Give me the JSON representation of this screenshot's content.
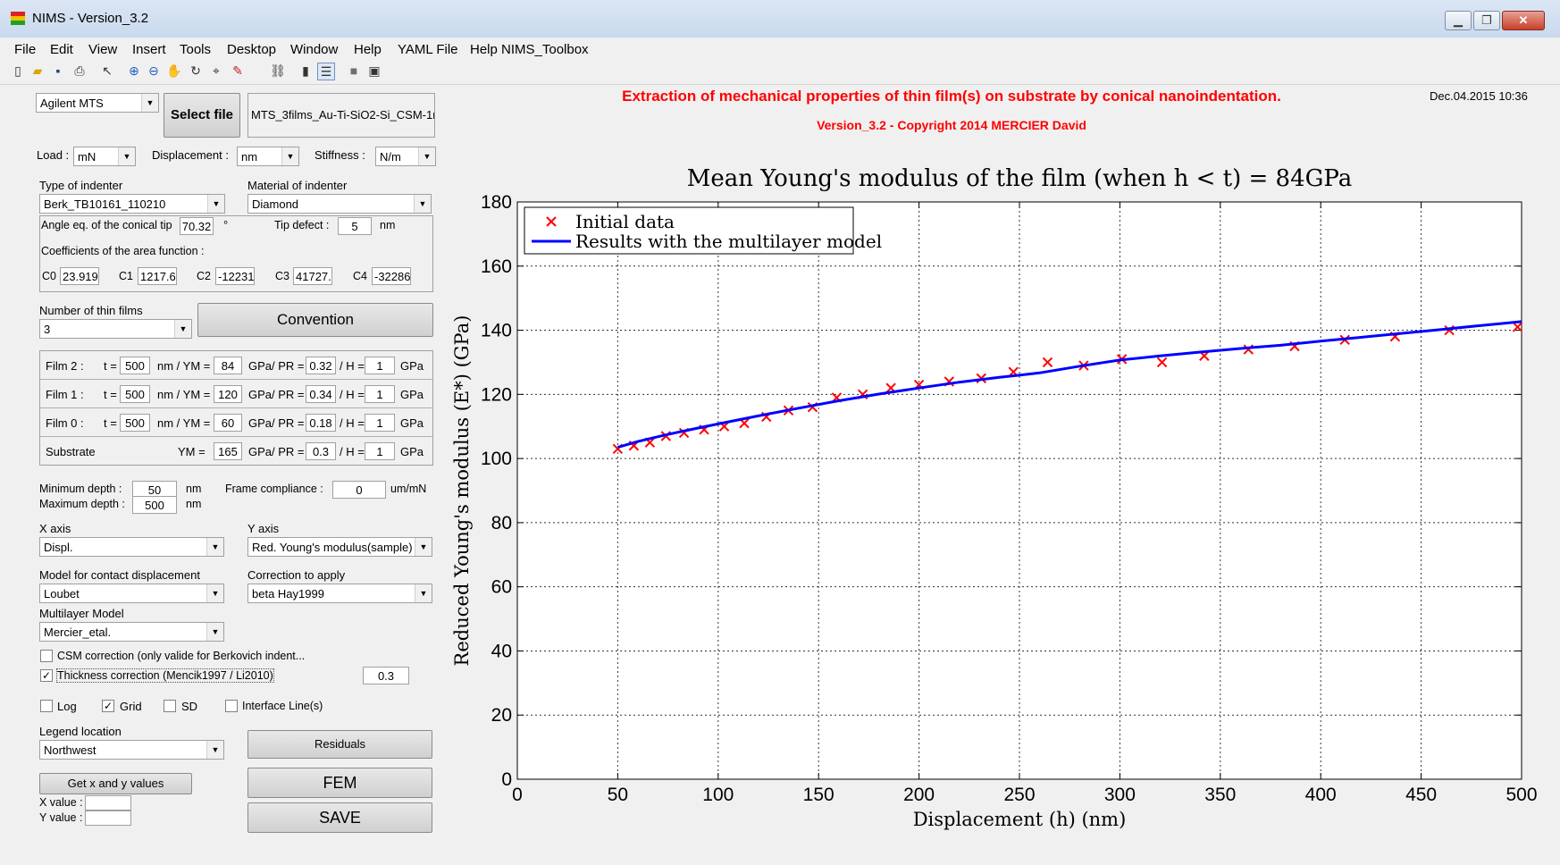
{
  "window": {
    "title": "NIMS - Version_3.2",
    "min": "▁",
    "max": "❐",
    "close": "✕"
  },
  "menu": [
    "File",
    "Edit",
    "View",
    "Insert",
    "Tools",
    "Desktop",
    "Window",
    "Help",
    "YAML File",
    "Help NIMS_Toolbox"
  ],
  "toolbar_icons": [
    "new-icon",
    "open-icon",
    "save-icon",
    "print-icon",
    "pointer-icon",
    "zoom-in-icon",
    "zoom-out-icon",
    "pan-icon",
    "rotate-icon",
    "datacursor-icon",
    "brush-icon",
    "link-icon",
    "colorbar-icon",
    "legend-icon",
    "hide-icon",
    "show-icon"
  ],
  "header": {
    "title": "Extraction of mechanical properties of thin film(s) on substrate by conical nanoindentation.",
    "subtitle": "Version_3.2 - Copyright 2014 MERCIER David",
    "date": "Dec.04.2015 10:36",
    "title_color": "#ff0000"
  },
  "left": {
    "instrument": "Agilent MTS",
    "select_file": "Select file",
    "filename": "MTS_3films_Au-Ti-SiO2-Si_CSM-1n",
    "load_label": "Load :",
    "load_unit": "mN",
    "disp_label": "Displacement :",
    "disp_unit": "nm",
    "stiff_label": "Stiffness :",
    "stiff_unit": "N/m",
    "indenter_type_label": "Type of indenter",
    "indenter_type": "Berk_TB10161_110210",
    "indenter_mat_label": "Material of indenter",
    "indenter_mat": "Diamond",
    "angle_label": "Angle eq. of the conical tip",
    "angle": "70.32",
    "deg": "°",
    "tipdef_label": "Tip defect :",
    "tipdef": "5",
    "tipdef_unit": "nm",
    "coef_label": "Coefficients of the area function :",
    "coefs": [
      {
        "name": "C0",
        "val": "23.919"
      },
      {
        "name": "C1",
        "val": "1217.6"
      },
      {
        "name": "C2",
        "val": "-12231"
      },
      {
        "name": "C3",
        "val": "41727."
      },
      {
        "name": "C4",
        "val": "-32286"
      }
    ],
    "nfilms_label": "Number of thin films",
    "nfilms": "3",
    "convention": "Convention",
    "films": [
      {
        "name": "Film 2 :",
        "t": "500",
        "ym": "84",
        "pr": "0.32",
        "h": "1"
      },
      {
        "name": "Film 1 :",
        "t": "500",
        "ym": "120",
        "pr": "0.34",
        "h": "1"
      },
      {
        "name": "Film 0 :",
        "t": "500",
        "ym": "60",
        "pr": "0.18",
        "h": "1"
      }
    ],
    "substrate": {
      "name": "Substrate",
      "ym": "165",
      "pr": "0.3",
      "h": "1"
    },
    "t_eq": "t =",
    "ym_lbl": "nm / YM =",
    "ym_only": "YM =",
    "pr_lbl": "GPa/ PR =",
    "h_lbl": "/ H =",
    "gpa": "GPa",
    "min_depth_label": "Minimum depth :",
    "min_depth": "50",
    "max_depth_label": "Maximum depth :",
    "max_depth": "500",
    "nm": "nm",
    "frame_label": "Frame compliance :",
    "frame": "0",
    "frame_unit": "um/mN",
    "xaxis_label": "X axis",
    "xaxis": "Displ.",
    "yaxis_label": "Y axis",
    "yaxis": "Red. Young's modulus(sample)",
    "model_label": "Model for contact displacement",
    "model": "Loubet",
    "corr_label": "Correction to apply",
    "corr": "beta Hay1999",
    "multi_label": "Multilayer Model",
    "multi": "Mercier_etal.",
    "csm": "CSM correction (only valide for Berkovich indent...",
    "thick": "Thickness correction (Mencik1997 / Li2010)",
    "thick_val": "0.3",
    "log": "Log",
    "grid": "Grid",
    "sd": "SD",
    "iface": "Interface Line(s)",
    "legend_label": "Legend location",
    "legend": "Northwest",
    "residuals": "Residuals",
    "getxy": "Get x and y values",
    "xval": "X value :",
    "yval": "Y value :",
    "fem": "FEM",
    "save": "SAVE",
    "check": "✓"
  },
  "chart_data": {
    "type": "line",
    "title": "Mean Young's modulus of the film (when h < t) = 84GPa",
    "xlabel": "Displacement (h) (nm)",
    "ylabel": "Reduced Young's modulus (E*) (GPa)",
    "xlim": [
      0,
      500
    ],
    "ylim": [
      0,
      180
    ],
    "xticks": [
      0,
      50,
      100,
      150,
      200,
      250,
      300,
      350,
      400,
      450,
      500
    ],
    "yticks": [
      0,
      20,
      40,
      60,
      80,
      100,
      120,
      140,
      160,
      180
    ],
    "grid": true,
    "legend_location": "top-left",
    "series": [
      {
        "name": "Initial data",
        "marker": "x",
        "color": "#ff0000",
        "x": [
          50,
          58,
          66,
          74,
          83,
          93,
          103,
          113,
          124,
          135,
          147,
          159,
          172,
          186,
          200,
          215,
          231,
          247,
          264,
          282,
          301,
          321,
          342,
          364,
          387,
          412,
          437,
          464,
          498
        ],
        "y": [
          103,
          104,
          105,
          107,
          108,
          109,
          110,
          111,
          113,
          115,
          116,
          119,
          120,
          122,
          123,
          124,
          125,
          127,
          130,
          129,
          131,
          130,
          132,
          134,
          135,
          137,
          138,
          140,
          141
        ]
      },
      {
        "name": "Results with the multilayer model",
        "marker": "line",
        "color": "#0000ff",
        "x": [
          50,
          60,
          70,
          80,
          90,
          100,
          120,
          140,
          160,
          180,
          200,
          220,
          240,
          260,
          280,
          300,
          320,
          340,
          360,
          380,
          400,
          420,
          440,
          460,
          480,
          500
        ],
        "y": [
          103.5,
          105.3,
          106.8,
          108.2,
          109.5,
          110.8,
          113.3,
          115.7,
          118.0,
          120.1,
          122.0,
          123.8,
          125.3,
          126.7,
          128.8,
          130.7,
          132.0,
          133.2,
          134.3,
          135.3,
          136.6,
          137.8,
          139.0,
          140.2,
          141.5,
          142.7
        ]
      }
    ]
  }
}
